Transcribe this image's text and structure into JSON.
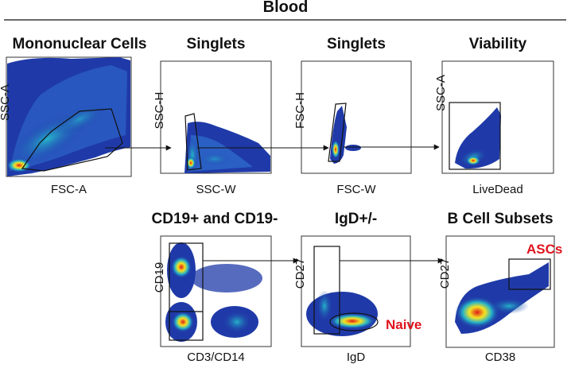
{
  "figure": {
    "title": "Blood",
    "colors": {
      "low": "#1f3aa8",
      "mid": "#25b3c9",
      "high": "#f5e321",
      "peak": "#e01a1a",
      "gate": "#111111",
      "label_red": "#e0141e"
    }
  },
  "panels": [
    {
      "id": "mononuclear",
      "title": "Mononuclear Cells",
      "xlabel": "FSC-A",
      "ylabel": "SSC-A"
    },
    {
      "id": "singlets1",
      "title": "Singlets",
      "xlabel": "SSC-W",
      "ylabel": "SSC-H"
    },
    {
      "id": "singlets2",
      "title": "Singlets",
      "xlabel": "FSC-W",
      "ylabel": "FSC-H"
    },
    {
      "id": "viability",
      "title": "Viability",
      "xlabel": "LiveDead",
      "ylabel": "SSC-A"
    },
    {
      "id": "cd19",
      "title": "CD19+ and CD19-",
      "xlabel": "CD3/CD14",
      "ylabel": "CD19"
    },
    {
      "id": "igd",
      "title": "IgD+/-",
      "xlabel": "IgD",
      "ylabel": "CD27",
      "annotation": "Naive"
    },
    {
      "id": "bcell",
      "title": "B Cell Subsets",
      "xlabel": "CD38",
      "ylabel": "CD27",
      "annotation": "ASCs"
    }
  ]
}
